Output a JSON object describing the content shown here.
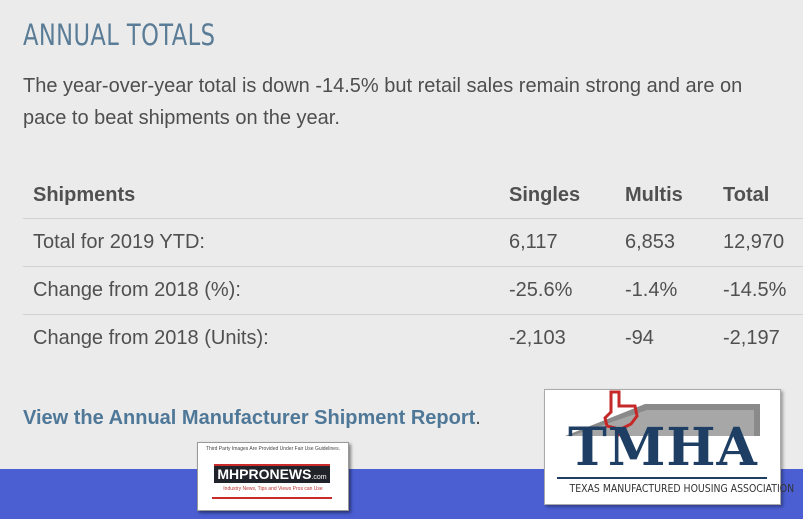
{
  "heading": "ANNUAL TOTALS",
  "intro": "The year-over-year total is down -14.5% but retail sales remain strong and are on pace to beat shipments on the year.",
  "table": {
    "headers": [
      "Shipments",
      "Singles",
      "Multis",
      "Total"
    ],
    "rows": [
      [
        "Total for 2019 YTD:",
        "6,117",
        "6,853",
        "12,970"
      ],
      [
        "Change from 2018 (%):",
        "-25.6%",
        "-1.4%",
        "-14.5%"
      ],
      [
        "Change from 2018 (Units):",
        "-2,103",
        "-94",
        "-2,197"
      ]
    ]
  },
  "report": {
    "link_text": "View the Annual Manufacturer Shipment Report",
    "suffix": "."
  },
  "mhpronews": {
    "tagline": "Third Party Images Are Provided Under Fair Use Guidelines.",
    "name": "MHPRONEWS",
    "tld": ".com",
    "subtitle": "Industry News, Tips and Views Pros can Use"
  },
  "tmha": {
    "letters": "TMHA",
    "subtitle": "TEXAS MANUFACTURED HOUSING ASSOCIATION",
    "colors": {
      "navy": "#1e3f63",
      "red": "#c62828",
      "roof": "#8a8a8a"
    }
  },
  "colors": {
    "heading": "#5a7c96",
    "link": "#4f7898",
    "band": "#4b5fd3",
    "background": "#ebebeb"
  }
}
